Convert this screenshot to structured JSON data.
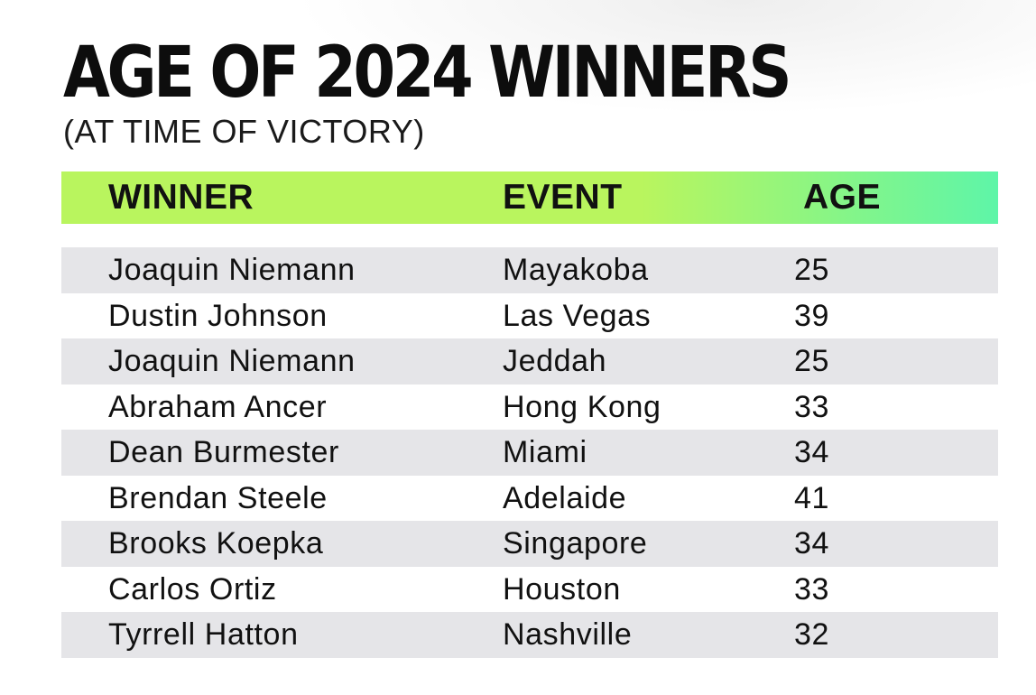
{
  "chart_data": {
    "type": "table",
    "title": "AGE OF 2024 WINNERS",
    "subtitle": "(AT TIME OF VICTORY)",
    "columns": [
      "WINNER",
      "EVENT",
      "AGE"
    ],
    "rows": [
      {
        "winner": "Joaquin Niemann",
        "event": "Mayakoba",
        "age": "25"
      },
      {
        "winner": "Dustin Johnson",
        "event": "Las Vegas",
        "age": "39"
      },
      {
        "winner": "Joaquin Niemann",
        "event": "Jeddah",
        "age": "25"
      },
      {
        "winner": "Abraham Ancer",
        "event": "Hong Kong",
        "age": "33"
      },
      {
        "winner": "Dean Burmester",
        "event": "Miami",
        "age": "34"
      },
      {
        "winner": "Brendan Steele",
        "event": "Adelaide",
        "age": "41"
      },
      {
        "winner": "Brooks Koepka",
        "event": "Singapore",
        "age": "34"
      },
      {
        "winner": "Carlos Ortiz",
        "event": "Houston",
        "age": "33"
      },
      {
        "winner": "Tyrrell Hatton",
        "event": "Nashville",
        "age": "32"
      }
    ],
    "header_gradient": [
      "#b9f55e",
      "#5ef5a8"
    ],
    "shaded_row_color": "#e5e5e8"
  }
}
